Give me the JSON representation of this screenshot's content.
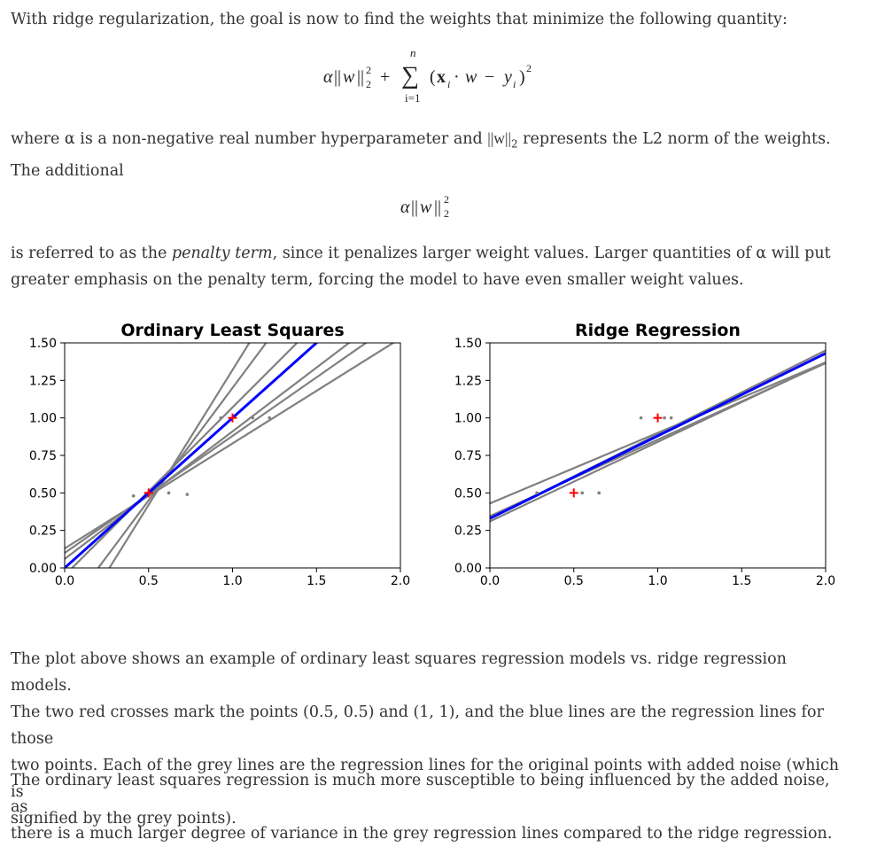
{
  "intro": {
    "text": "With ridge regularization, the goal is now to find the weights that minimize the following quantity:"
  },
  "equation_main": {
    "alpha": "α",
    "norm_open": "||",
    "w": "w",
    "norm_close": "||",
    "sub": "2",
    "sup": "2",
    "plus": "+",
    "sigma": "∑",
    "sum_top": "n",
    "sum_bottom": "i=1",
    "open": "(",
    "x": "x",
    "x_sub": "i",
    "dot": "·",
    "w2": "w",
    "minus": "−",
    "y": "y",
    "y_sub": "i",
    "close": ")",
    "power": "2"
  },
  "where_paragraph": {
    "line1_a": "where α is a non-negative real number hyperparameter and ",
    "norm": "||w||",
    "norm_sub": "2",
    "line1_b": " represents the L2 norm of the weights.",
    "line2": "The additional"
  },
  "equation_penalty": {
    "alpha": "α",
    "norm_open": "||",
    "w": "w",
    "norm_close": "||",
    "sub": "2",
    "sup": "2"
  },
  "penalty_paragraph": {
    "a": "is referred to as the ",
    "em": "penalty term",
    "b": ", since it penalizes larger weight values. Larger quantities of α will put",
    "c": "greater emphasis on the penalty term, forcing the model to have even smaller weight values."
  },
  "chart_data": [
    {
      "type": "line",
      "title": "Ordinary Least Squares",
      "xlabel": "",
      "ylabel": "",
      "xlim": [
        0.0,
        2.0
      ],
      "ylim": [
        0.0,
        1.5
      ],
      "x_ticks": [
        "0.0",
        "0.5",
        "1.0",
        "1.5",
        "2.0"
      ],
      "y_ticks": [
        "0.00",
        "0.25",
        "0.50",
        "0.75",
        "1.00",
        "1.25",
        "1.50"
      ],
      "x_tick_values": [
        0.0,
        0.5,
        1.0,
        1.5,
        2.0
      ],
      "y_tick_values": [
        0.0,
        0.25,
        0.5,
        0.75,
        1.0,
        1.25,
        1.5
      ],
      "grey_lines": [
        {
          "slope": 1.8,
          "intercept": -0.48
        },
        {
          "slope": 1.5,
          "intercept": -0.3
        },
        {
          "slope": 0.78,
          "intercept": 0.1
        },
        {
          "slope": 0.7,
          "intercept": 0.13
        },
        {
          "slope": 1.12,
          "intercept": -0.05
        },
        {
          "slope": 0.85,
          "intercept": 0.06
        }
      ],
      "blue_line": {
        "slope": 1.0,
        "intercept": 0.0
      },
      "grey_points": [
        [
          0.41,
          0.48
        ],
        [
          0.62,
          0.5
        ],
        [
          0.73,
          0.49
        ],
        [
          0.93,
          1.0
        ],
        [
          1.12,
          1.0
        ],
        [
          1.22,
          1.0
        ]
      ],
      "red_points": [
        [
          0.5,
          0.5
        ],
        [
          1.0,
          1.0
        ]
      ]
    },
    {
      "type": "line",
      "title": "Ridge Regression",
      "xlabel": "",
      "ylabel": "",
      "xlim": [
        0.0,
        2.0
      ],
      "ylim": [
        0.0,
        1.5
      ],
      "x_ticks": [
        "0.0",
        "0.5",
        "1.0",
        "1.5",
        "2.0"
      ],
      "y_ticks": [
        "0.00",
        "0.25",
        "0.50",
        "0.75",
        "1.00",
        "1.25",
        "1.50"
      ],
      "x_tick_values": [
        0.0,
        0.5,
        1.0,
        1.5,
        2.0
      ],
      "y_tick_values": [
        0.0,
        0.25,
        0.5,
        0.75,
        1.0,
        1.25,
        1.5
      ],
      "grey_lines": [
        {
          "slope": 0.53,
          "intercept": 0.31
        },
        {
          "slope": 0.51,
          "intercept": 0.345
        },
        {
          "slope": 0.47,
          "intercept": 0.43
        },
        {
          "slope": 0.56,
          "intercept": 0.33
        }
      ],
      "blue_line": {
        "slope": 0.55,
        "intercept": 0.33
      },
      "grey_points": [
        [
          0.28,
          0.5
        ],
        [
          0.55,
          0.5
        ],
        [
          0.65,
          0.5
        ],
        [
          0.9,
          1.0
        ],
        [
          1.04,
          1.0
        ],
        [
          1.08,
          1.0
        ]
      ],
      "red_points": [
        [
          0.5,
          0.5
        ],
        [
          1.0,
          1.0
        ]
      ]
    }
  ],
  "explain_paragraph": {
    "l1": "The plot above shows an example of ordinary least squares regression models vs. ridge regression models.",
    "l2": "The two red crosses mark the points (0.5, 0.5) and (1, 1), and the blue lines are the regression lines for those",
    "l3": "two points. Each of the grey lines are the regression lines for the original points with added noise (which is",
    "l4": "signified by the grey points)."
  },
  "conclusion_paragraph": {
    "l1": "The ordinary least squares regression is much more susceptible to being influenced by the added noise, as",
    "l2": "there is a much larger degree of variance in the grey regression lines compared to the ridge regression."
  },
  "colors": {
    "text": "#333333",
    "blue_line": "#0000ff",
    "grey_line": "#808080",
    "red_marker": "#ff0000"
  }
}
